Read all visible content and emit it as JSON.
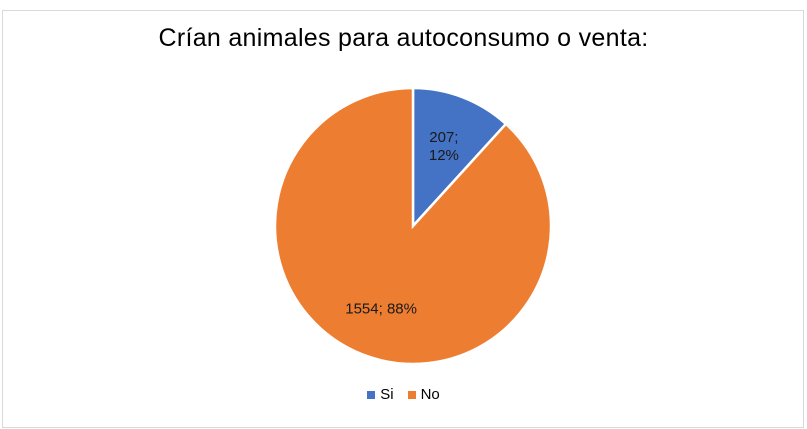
{
  "chart_data": {
    "type": "pie",
    "title": "Crían animales para autoconsumo o venta:",
    "categories": [
      "Si",
      "No"
    ],
    "values": [
      207,
      1554
    ],
    "percentages": [
      12,
      88
    ],
    "data_labels": [
      "207;\n12%",
      "1554; 88%"
    ],
    "colors": [
      "#4472C4",
      "#ED7D31"
    ],
    "legend_position": "bottom"
  }
}
